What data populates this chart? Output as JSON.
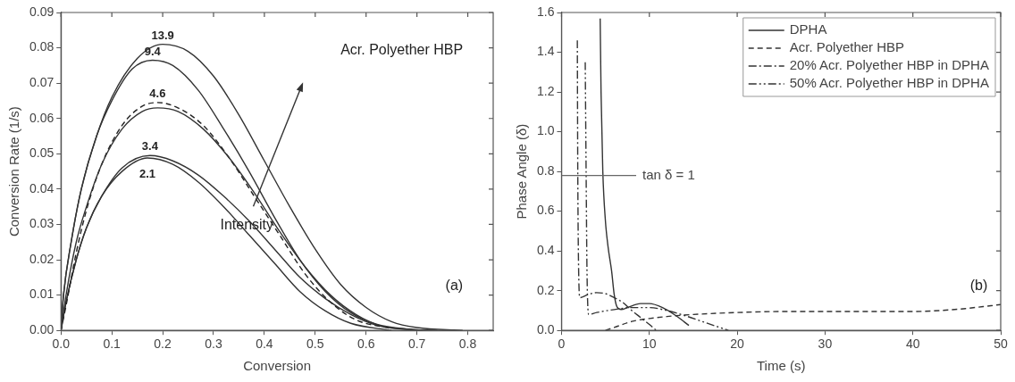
{
  "chart_data": [
    {
      "type": "line",
      "xlabel": "Conversion",
      "ylabel": "Conversion Rate (1/s)",
      "xlim": [
        0,
        0.85
      ],
      "xticks": [
        {
          "value": 0,
          "label": "0.0"
        },
        {
          "value": 0.1,
          "label": "0.1"
        },
        {
          "value": 0.2,
          "label": "0.2"
        },
        {
          "value": 0.3,
          "label": "0.3"
        },
        {
          "value": 0.4,
          "label": "0.4"
        },
        {
          "value": 0.5,
          "label": "0.5"
        },
        {
          "value": 0.6,
          "label": "0.6"
        },
        {
          "value": 0.7,
          "label": "0.7"
        },
        {
          "value": 0.8,
          "label": "0.8"
        }
      ],
      "ylim": [
        0,
        0.09
      ],
      "yticks": [
        {
          "value": 0,
          "label": "0.00"
        },
        {
          "value": 0.01,
          "label": "0.01"
        },
        {
          "value": 0.02,
          "label": "0.02"
        },
        {
          "value": 0.03,
          "label": "0.03"
        },
        {
          "value": 0.04,
          "label": "0.04"
        },
        {
          "value": 0.05,
          "label": "0.05"
        },
        {
          "value": 0.06,
          "label": "0.06"
        },
        {
          "value": 0.07,
          "label": "0.07"
        },
        {
          "value": 0.08,
          "label": "0.08"
        },
        {
          "value": 0.09,
          "label": "0.09"
        }
      ],
      "marker": "none",
      "series": [
        {
          "color": "#333333",
          "line_style": "solid",
          "x": [
            0,
            0.005,
            0.02,
            0.04,
            0.07,
            0.1,
            0.15,
            0.2,
            0.25,
            0.3,
            0.35,
            0.4,
            0.45,
            0.5,
            0.55,
            0.6,
            0.65,
            0.7,
            0.79
          ],
          "values": [
            0,
            0.01,
            0.025,
            0.04,
            0.055,
            0.066,
            0.077,
            0.081,
            0.079,
            0.072,
            0.061,
            0.048,
            0.035,
            0.023,
            0.013,
            0.0065,
            0.0025,
            0.0008,
            0
          ]
        },
        {
          "color": "#333333",
          "line_style": "solid",
          "x": [
            0,
            0.005,
            0.02,
            0.04,
            0.07,
            0.1,
            0.14,
            0.18,
            0.22,
            0.27,
            0.32,
            0.37,
            0.42,
            0.47,
            0.52,
            0.57,
            0.62,
            0.68,
            0.74
          ],
          "values": [
            0,
            0.01,
            0.025,
            0.04,
            0.055,
            0.065,
            0.074,
            0.0765,
            0.075,
            0.068,
            0.057,
            0.045,
            0.032,
            0.02,
            0.011,
            0.005,
            0.0018,
            0.0004,
            0
          ]
        },
        {
          "color": "#333333",
          "line_style": "solid",
          "x": [
            0,
            0.01,
            0.03,
            0.05,
            0.08,
            0.12,
            0.16,
            0.19,
            0.23,
            0.28,
            0.33,
            0.38,
            0.43,
            0.48,
            0.53,
            0.58,
            0.63,
            0.7
          ],
          "values": [
            0,
            0.01,
            0.025,
            0.035,
            0.047,
            0.057,
            0.062,
            0.063,
            0.062,
            0.057,
            0.049,
            0.039,
            0.028,
            0.018,
            0.01,
            0.0045,
            0.0012,
            0
          ]
        },
        {
          "color": "#222222",
          "line_style": "dashed",
          "x": [
            0,
            0.01,
            0.03,
            0.05,
            0.08,
            0.12,
            0.16,
            0.19,
            0.23,
            0.28,
            0.33,
            0.38,
            0.43,
            0.48,
            0.53,
            0.58,
            0.65
          ],
          "values": [
            0,
            0.007,
            0.022,
            0.034,
            0.047,
            0.058,
            0.0635,
            0.0645,
            0.063,
            0.058,
            0.049,
            0.038,
            0.027,
            0.016,
            0.008,
            0.003,
            0.0005
          ]
        },
        {
          "color": "#333333",
          "line_style": "solid",
          "x": [
            0,
            0.01,
            0.03,
            0.05,
            0.08,
            0.12,
            0.175,
            0.22,
            0.27,
            0.32,
            0.37,
            0.42,
            0.47,
            0.52,
            0.57,
            0.62,
            0.71
          ],
          "values": [
            0,
            0.008,
            0.02,
            0.029,
            0.038,
            0.046,
            0.0495,
            0.048,
            0.044,
            0.038,
            0.031,
            0.023,
            0.015,
            0.009,
            0.0045,
            0.0015,
            0
          ]
        },
        {
          "color": "#333333",
          "line_style": "solid",
          "x": [
            0,
            0.01,
            0.03,
            0.05,
            0.08,
            0.12,
            0.17,
            0.22,
            0.27,
            0.32,
            0.37,
            0.42,
            0.47,
            0.52,
            0.57,
            0.65
          ],
          "values": [
            0,
            0.008,
            0.02,
            0.029,
            0.038,
            0.045,
            0.0488,
            0.047,
            0.042,
            0.035,
            0.027,
            0.019,
            0.011,
            0.0055,
            0.002,
            0
          ]
        }
      ],
      "annotations": [
        {
          "text": "13.9",
          "x": 0.2,
          "y": 0.081
        },
        {
          "text": "9.4",
          "x": 0.18,
          "y": 0.0765
        },
        {
          "text": "4.6",
          "x": 0.19,
          "y": 0.0645
        },
        {
          "text": "3.4",
          "x": 0.175,
          "y": 0.0495
        },
        {
          "text": "2.1",
          "x": 0.17,
          "y": 0.0488
        },
        "Acr. Polyether HBP",
        "Intensity",
        "(a)"
      ]
    },
    {
      "type": "line",
      "xlabel": "Time (s)",
      "ylabel": "Phase Angle (δ)",
      "xlim": [
        0,
        50
      ],
      "xticks": [
        0,
        10,
        20,
        30,
        40,
        50
      ],
      "ylim": [
        0,
        1.6
      ],
      "yticks": [
        {
          "value": 0,
          "label": "0.0"
        },
        {
          "value": 0.2,
          "label": "0.2"
        },
        {
          "value": 0.4,
          "label": "0.4"
        },
        {
          "value": 0.6,
          "label": "0.6"
        },
        {
          "value": 0.8,
          "label": "0.8"
        },
        {
          "value": 1,
          "label": "1.0"
        },
        {
          "value": 1.2,
          "label": "1.2"
        },
        {
          "value": 1.4,
          "label": "1.4"
        },
        {
          "value": 1.6,
          "label": "1.6"
        }
      ],
      "marker": "none",
      "legend": "top right",
      "series": [
        {
          "name": "DPHA",
          "color": "#333333",
          "line_style": "solid",
          "x": [
            4.4,
            4.5,
            4.7,
            5,
            5.3,
            5.7,
            6,
            6.3,
            6.8,
            7.5,
            9,
            10,
            11.5,
            13,
            14.5
          ],
          "values": [
            1.57,
            1.2,
            0.8,
            0.55,
            0.42,
            0.3,
            0.18,
            0.12,
            0.105,
            0.115,
            0.135,
            0.135,
            0.115,
            0.075,
            0.025
          ]
        },
        {
          "name": "Acr. Polyether HBP",
          "color": "#333333",
          "line_style": "dashed",
          "x": [
            5,
            6,
            8,
            10,
            12,
            15,
            20,
            25,
            30,
            35,
            40,
            43,
            46,
            48,
            50
          ],
          "values": [
            0,
            0.015,
            0.045,
            0.06,
            0.07,
            0.08,
            0.09,
            0.095,
            0.095,
            0.095,
            0.095,
            0.1,
            0.11,
            0.12,
            0.13
          ]
        },
        {
          "name": "20% Acr. Polyether HBP in DPHA",
          "color": "#333333",
          "line_style": "dashdot",
          "x": [
            1.8,
            1.85,
            1.95,
            2.1,
            3,
            4,
            5,
            6,
            7,
            8,
            9,
            10,
            10.8
          ],
          "values": [
            1.46,
            0.8,
            0.3,
            0.165,
            0.18,
            0.19,
            0.185,
            0.165,
            0.14,
            0.1,
            0.065,
            0.03,
            0
          ]
        },
        {
          "name": "50% Acr. Polyether HBP in DPHA",
          "color": "#333333",
          "line_style": "dashdotdot",
          "x": [
            2.7,
            2.8,
            2.9,
            3.1,
            4,
            6,
            8,
            10,
            12,
            14,
            16,
            18,
            19
          ],
          "values": [
            1.35,
            0.8,
            0.3,
            0.08,
            0.09,
            0.105,
            0.115,
            0.115,
            0.1,
            0.075,
            0.045,
            0.015,
            0
          ]
        }
      ],
      "ref_lines": [
        {
          "axis": "y",
          "value": 0.78,
          "label": "tan δ = 1"
        }
      ],
      "annotations": [
        "(b)"
      ]
    }
  ]
}
